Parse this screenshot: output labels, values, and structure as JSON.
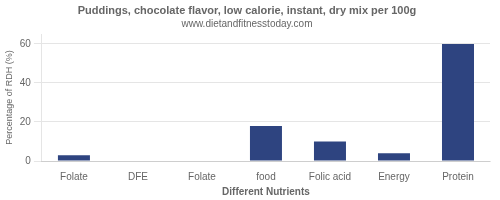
{
  "chart_data": {
    "type": "bar",
    "title": "Puddings, chocolate flavor, low calorie, instant, dry mix per 100g",
    "subtitle": "www.dietandfitnesstoday.com",
    "xlabel": "Different Nutrients",
    "ylabel": "Percentage of RDH (%)",
    "categories": [
      "Folate",
      "DFE",
      "Folate",
      "food",
      "Folic acid",
      "Energy",
      "Protein"
    ],
    "values": [
      3,
      0,
      0,
      18,
      10,
      4,
      60
    ],
    "color": "#2e4480",
    "ylim": [
      0,
      65
    ],
    "yticks": [
      0,
      20,
      40,
      60
    ],
    "grid": true
  }
}
